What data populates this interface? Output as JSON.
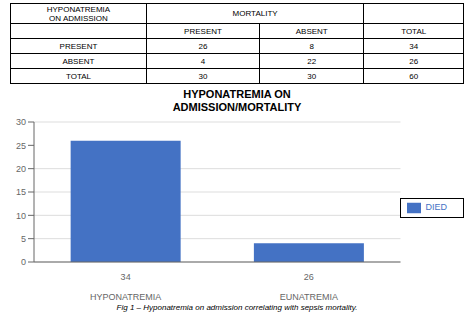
{
  "chart_data": {
    "type": "bar",
    "title": "HYPONATREMIA ON\nADMISSION/MORTALITY",
    "categories": [
      "HYPONATREMIA",
      "EUNATREMIA"
    ],
    "subcategories": [
      "34",
      "26"
    ],
    "series": [
      {
        "name": "DIED",
        "color": "#4472C4",
        "values": [
          26,
          4
        ]
      }
    ],
    "ylim": [
      0,
      30
    ],
    "yticks": [
      0,
      5,
      10,
      15,
      20,
      25,
      30
    ],
    "grid": true,
    "legend": "right",
    "caption": "Fig 1 – Hyponatremia on admission correlating with sepsis mortality."
  },
  "table": {
    "header": "HYPONATREMIA\nON ADMISSION",
    "group_header": "MORTALITY",
    "columns": [
      "PRESENT",
      "ABSENT",
      "TOTAL"
    ],
    "rows": [
      "PRESENT",
      "ABSENT",
      "TOTAL"
    ],
    "present": [
      "26",
      "4",
      "30"
    ],
    "absent": [
      "8",
      "22",
      "30"
    ],
    "total": [
      "34",
      "26",
      "60"
    ]
  }
}
